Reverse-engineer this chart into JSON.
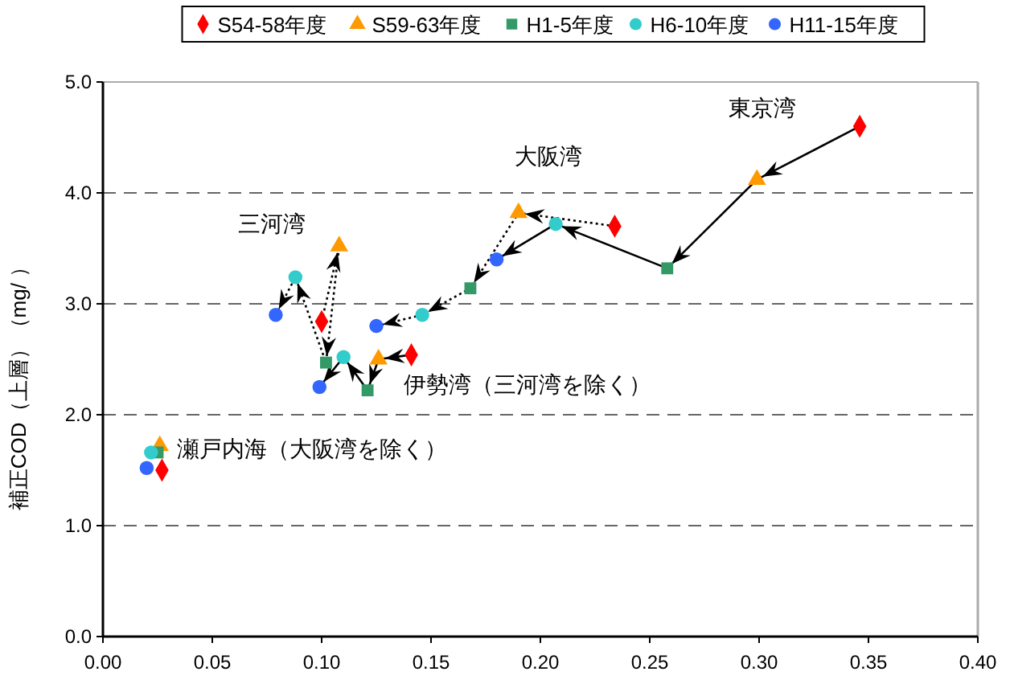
{
  "chart_data": {
    "type": "scatter",
    "ylabel": "補正COD（上層）（mg/ ）",
    "xlim": [
      0,
      0.4
    ],
    "ylim": [
      0,
      5
    ],
    "xticks": [
      {
        "value": 0,
        "label": "0.00"
      },
      {
        "value": 0.05,
        "label": "0.05"
      },
      {
        "value": 0.1,
        "label": "0.10"
      },
      {
        "value": 0.15,
        "label": "0.15"
      },
      {
        "value": 0.2,
        "label": "0.20"
      },
      {
        "value": 0.25,
        "label": "0.25"
      },
      {
        "value": 0.3,
        "label": "0.30"
      },
      {
        "value": 0.35,
        "label": "0.35"
      },
      {
        "value": 0.4,
        "label": "0.40"
      }
    ],
    "yticks": [
      {
        "value": 0,
        "label": "0.0"
      },
      {
        "value": 1,
        "label": "1.0"
      },
      {
        "value": 2,
        "label": "2.0"
      },
      {
        "value": 3,
        "label": "3.0"
      },
      {
        "value": 4,
        "label": "4.0"
      },
      {
        "value": 5,
        "label": "5.0"
      }
    ],
    "grid": "y",
    "legend": "top",
    "series": [
      {
        "type": "line",
        "color": "#000000",
        "line_style": "solid",
        "x": [
          0.346,
          0.299,
          0.258,
          0.207,
          0.18
        ],
        "values": [
          4.6,
          4.12,
          3.32,
          3.72,
          3.4
        ]
      },
      {
        "type": "line",
        "color": "#000000",
        "line_style": "dotted",
        "x": [
          0.234,
          0.19,
          0.168,
          0.146,
          0.125
        ],
        "values": [
          3.7,
          3.82,
          3.14,
          2.9,
          2.8
        ]
      },
      {
        "type": "line",
        "color": "#000000",
        "line_style": "dotted",
        "x": [
          0.1,
          0.108,
          0.102,
          0.088,
          0.079
        ],
        "values": [
          2.84,
          3.52,
          2.47,
          3.24,
          2.9
        ]
      },
      {
        "type": "line",
        "color": "#000000",
        "line_style": "solid",
        "x": [
          0.141,
          0.126,
          0.121,
          0.11,
          0.099
        ],
        "values": [
          2.54,
          2.5,
          2.22,
          2.52,
          2.25
        ]
      },
      {
        "name": "S54-58年度",
        "color": "#ff0000",
        "marker": "diamond",
        "x": [
          0.346,
          0.234,
          0.1,
          0.141,
          0.027
        ],
        "values": [
          4.6,
          3.7,
          2.84,
          2.54,
          1.5
        ]
      },
      {
        "name": "S59-63年度",
        "color": "#ff9900",
        "marker": "triangle",
        "x": [
          0.299,
          0.19,
          0.108,
          0.126,
          0.026
        ],
        "values": [
          4.12,
          3.82,
          3.52,
          2.5,
          1.72
        ]
      },
      {
        "name": "H1-5年度",
        "color": "#339966",
        "marker": "square",
        "x": [
          0.258,
          0.168,
          0.102,
          0.121,
          0.025
        ],
        "values": [
          3.32,
          3.14,
          2.47,
          2.22,
          1.66
        ]
      },
      {
        "name": "H6-10年度",
        "color": "#33cccc",
        "marker": "circle",
        "x": [
          0.207,
          0.146,
          0.088,
          0.11,
          0.022
        ],
        "values": [
          3.72,
          2.9,
          3.24,
          2.52,
          1.66
        ]
      },
      {
        "name": "H11-15年度",
        "color": "#3366ff",
        "marker": "circle",
        "x": [
          0.18,
          0.125,
          0.079,
          0.099,
          0.02
        ],
        "values": [
          3.4,
          2.8,
          2.9,
          2.25,
          1.52
        ]
      }
    ],
    "annotations": [
      "東京湾",
      "大阪湾",
      "三河湾",
      "伊勢湾（三河湾を除く）",
      "瀬戸内海（大阪湾を除く）"
    ]
  }
}
